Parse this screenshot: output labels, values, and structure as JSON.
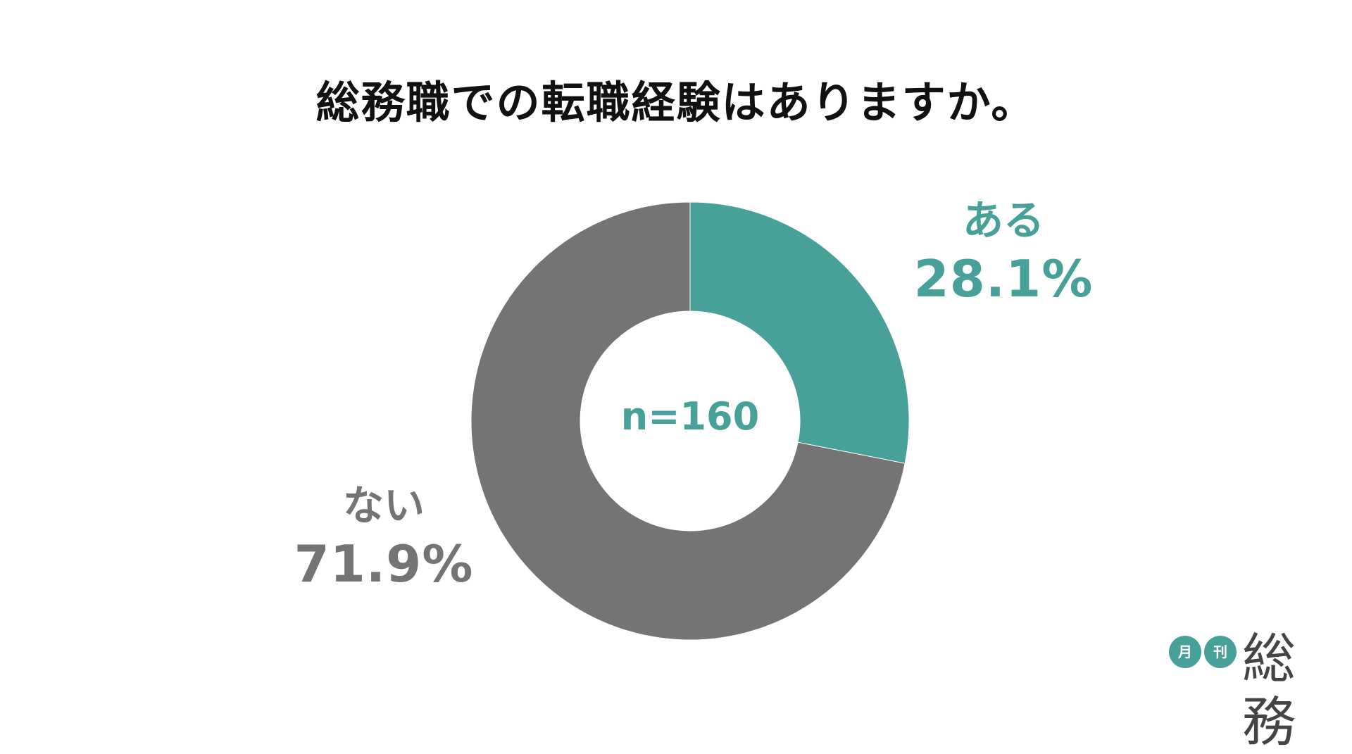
{
  "chart_data": {
    "type": "pie",
    "style": "donut",
    "title": "総務職での転職経験はありますか。",
    "center_label": "n=160",
    "slices": [
      {
        "label": "ある",
        "value": 28.1,
        "value_label": "28.1%",
        "color": "#48a199"
      },
      {
        "label": "ない",
        "value": 71.9,
        "value_label": "71.9%",
        "color": "#747474"
      }
    ]
  },
  "colors": {
    "accent": "#48a199",
    "neutral": "#747474",
    "title": "#111111",
    "logo_text": "#444444"
  },
  "logo": {
    "char1": "月",
    "char2": "刊",
    "mark": "総務"
  }
}
